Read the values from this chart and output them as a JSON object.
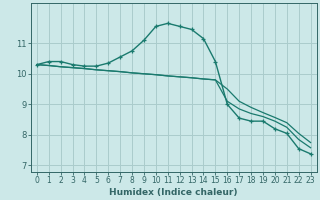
{
  "xlabel": "Humidex (Indice chaleur)",
  "ylabel": "",
  "bg_color": "#cce8e8",
  "grid_color": "#aacccc",
  "line_color": "#1a7a6e",
  "xlim": [
    -0.5,
    23.5
  ],
  "ylim": [
    6.8,
    12.3
  ],
  "yticks": [
    7,
    8,
    9,
    10,
    11
  ],
  "xticks": [
    0,
    1,
    2,
    3,
    4,
    5,
    6,
    7,
    8,
    9,
    10,
    11,
    12,
    13,
    14,
    15,
    16,
    17,
    18,
    19,
    20,
    21,
    22,
    23
  ],
  "series1_x": [
    0,
    1,
    2,
    3,
    4,
    5,
    6,
    7,
    8,
    9,
    10,
    11,
    12,
    13,
    14,
    15,
    16,
    17,
    18,
    19,
    20,
    21,
    22,
    23
  ],
  "series1_y": [
    10.3,
    10.4,
    10.4,
    10.3,
    10.25,
    10.25,
    10.35,
    10.55,
    10.75,
    11.1,
    11.55,
    11.65,
    11.55,
    11.45,
    11.15,
    10.4,
    9.0,
    8.55,
    8.45,
    8.45,
    8.2,
    8.05,
    7.55,
    7.38
  ],
  "series2_x": [
    0,
    1,
    2,
    3,
    4,
    5,
    6,
    7,
    8,
    9,
    10,
    11,
    12,
    13,
    14,
    15,
    16,
    17,
    18,
    19,
    20,
    21,
    22,
    23
  ],
  "series2_y": [
    10.3,
    10.27,
    10.23,
    10.2,
    10.17,
    10.13,
    10.1,
    10.07,
    10.03,
    10.0,
    9.97,
    9.93,
    9.9,
    9.87,
    9.83,
    9.8,
    9.5,
    9.1,
    8.9,
    8.73,
    8.57,
    8.4,
    8.05,
    7.75
  ],
  "series3_x": [
    0,
    1,
    2,
    3,
    4,
    5,
    6,
    7,
    8,
    9,
    10,
    11,
    12,
    13,
    14,
    15,
    16,
    17,
    18,
    19,
    20,
    21,
    22,
    23
  ],
  "series3_y": [
    10.3,
    10.27,
    10.23,
    10.2,
    10.17,
    10.13,
    10.1,
    10.07,
    10.03,
    10.0,
    9.97,
    9.93,
    9.9,
    9.87,
    9.83,
    9.8,
    9.1,
    8.85,
    8.7,
    8.6,
    8.45,
    8.25,
    7.85,
    7.58
  ],
  "tick_fontsize": 5.5,
  "xlabel_fontsize": 6.5,
  "tick_color": "#336666",
  "xlabel_color": "#336666"
}
